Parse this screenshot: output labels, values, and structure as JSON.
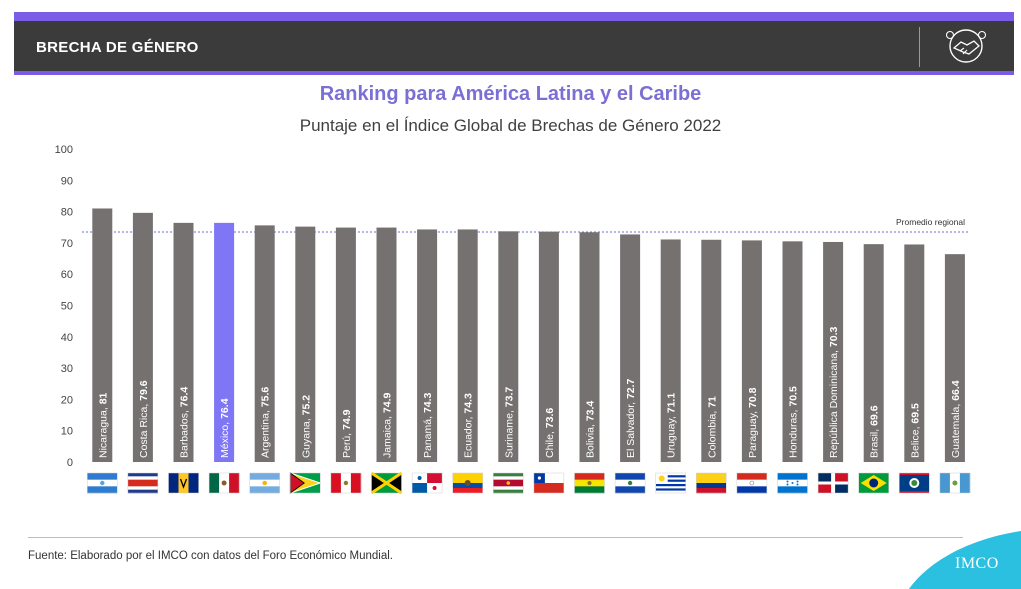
{
  "header": {
    "title": "BRECHA DE GÉNERO",
    "icon": "handshake-icon"
  },
  "chart_data": {
    "type": "bar",
    "title": "Ranking para América Latina y el Caribe",
    "subtitle": "Puntaje en el Índice Global de Brechas de Género 2022",
    "ylim": [
      0,
      100
    ],
    "yticks": [
      0,
      10,
      20,
      30,
      40,
      50,
      60,
      70,
      80,
      90,
      100
    ],
    "categories": [
      "Nicaragua",
      "Costa Rica",
      "Barbados",
      "México",
      "Argentina",
      "Guyana",
      "Perú",
      "Jamaica",
      "Panamá",
      "Ecuador",
      "Suriname",
      "Chile",
      "Bolivia",
      "El Salvador",
      "Uruguay",
      "Colombia",
      "Paraguay",
      "Honduras",
      "República Dominicana",
      "Brasil",
      "Belice",
      "Guatemala"
    ],
    "labels": [
      "81",
      "79.6",
      "76.4",
      "76.4",
      "75.6",
      "75.2",
      "74.9",
      "74.9",
      "74.3",
      "74.3",
      "73.7",
      "73.6",
      "73.4",
      "72.7",
      "71.1",
      "71",
      "70.8",
      "70.5",
      "70.3",
      "69.6",
      "69.5",
      "66.4"
    ],
    "values": [
      81,
      79.6,
      76.4,
      76.4,
      75.6,
      75.2,
      74.9,
      74.9,
      74.3,
      74.3,
      73.7,
      73.6,
      73.4,
      72.7,
      71.1,
      71,
      70.8,
      70.5,
      70.3,
      69.6,
      69.5,
      66.4
    ],
    "highlight": "México",
    "bar_color": "#767171",
    "highlight_color": "#7e76f5",
    "reference_line": {
      "label": "Promedio regional",
      "value": 73.5,
      "color": "#6b6fd6"
    }
  },
  "footer": {
    "source": "Fuente: Elaborado por el IMCO con datos del Foro Económico Mundial.",
    "logo": "IMCO",
    "logo_color": "#2bc0df"
  }
}
